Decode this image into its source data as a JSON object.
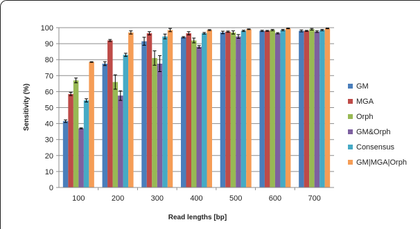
{
  "chart_data": {
    "type": "bar",
    "title": "",
    "xlabel": "Read lengths [bp]",
    "ylabel": "Sensitivity (%)",
    "ylim": [
      0,
      100
    ],
    "yticks": [
      0,
      10,
      20,
      30,
      40,
      50,
      60,
      70,
      80,
      90,
      100
    ],
    "grid": true,
    "legend_position": "right",
    "categories": [
      "100",
      "200",
      "300",
      "400",
      "500",
      "600",
      "700"
    ],
    "series": [
      {
        "name": "GM",
        "color": "#4a7ebb",
        "values": [
          41.5,
          77.5,
          91.5,
          94,
          97,
          98,
          98
        ],
        "errors": [
          0.8,
          1.2,
          2.5,
          0.4,
          0.8,
          0.4,
          0.6
        ]
      },
      {
        "name": "MGA",
        "color": "#be4b48",
        "values": [
          58.5,
          92,
          96.5,
          96.5,
          97.5,
          98,
          98
        ],
        "errors": [
          1,
          0.6,
          1,
          1,
          0.4,
          0.3,
          0.3
        ]
      },
      {
        "name": "Orph",
        "color": "#98b954",
        "values": [
          67,
          66,
          81,
          92,
          97,
          98.5,
          99
        ],
        "errors": [
          1.5,
          4.5,
          4.5,
          1.5,
          1,
          0.4,
          0.5
        ]
      },
      {
        "name": "GM&Orph",
        "color": "#7d60a0",
        "values": [
          37,
          57.5,
          77.5,
          88,
          94.5,
          96.5,
          97.5
        ],
        "errors": [
          0.3,
          3,
          5,
          0.8,
          1.2,
          0.4,
          0.5
        ]
      },
      {
        "name": "Consensus",
        "color": "#46aac5",
        "values": [
          54.5,
          83,
          94.5,
          96.5,
          98,
          98.5,
          98.5
        ],
        "errors": [
          1,
          1,
          1.5,
          0.5,
          0.4,
          0.4,
          0.4
        ]
      },
      {
        "name": "GM|MGA|Orph",
        "color": "#f59d56",
        "values": [
          78.5,
          97,
          98.5,
          98.5,
          99,
          99.5,
          99.5
        ],
        "errors": [
          0.2,
          1,
          1,
          0.3,
          0.2,
          0.2,
          0.2
        ]
      }
    ]
  }
}
